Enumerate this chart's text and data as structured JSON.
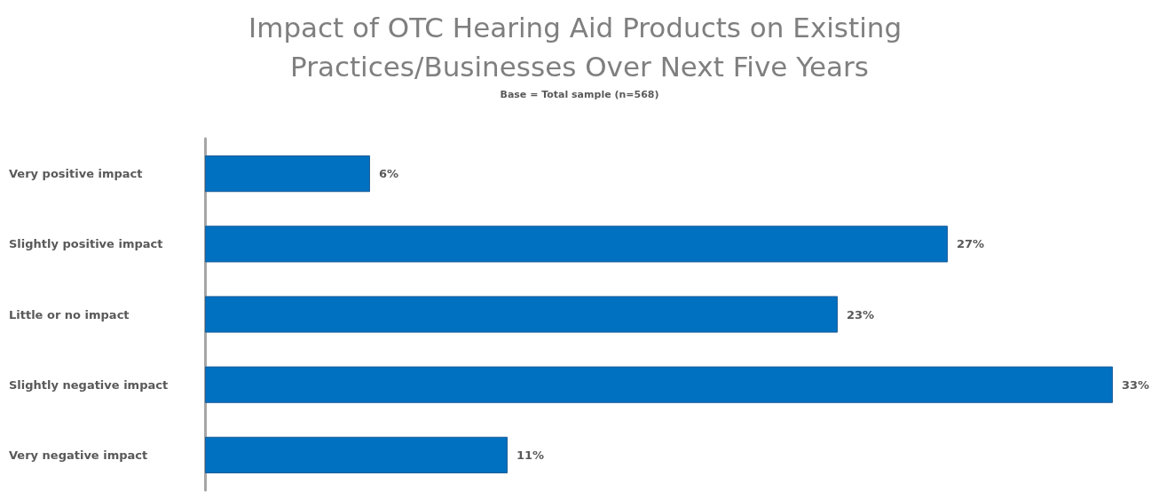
{
  "chart_data": {
    "type": "bar",
    "orientation": "horizontal",
    "title": "Impact of OTC Hearing Aid Products on Existing Practices/Businesses Over Next Five Years",
    "subtitle": "Base = Total sample (n=568)",
    "categories": [
      "Very positive impact",
      "Slightly positive impact",
      "Little or no impact",
      "Slightly negative impact",
      "Very negative impact"
    ],
    "values": [
      6,
      27,
      23,
      33,
      11
    ],
    "value_labels": [
      "6%",
      "27%",
      "23%",
      "33%",
      "11%"
    ],
    "color": "#0070c0"
  }
}
